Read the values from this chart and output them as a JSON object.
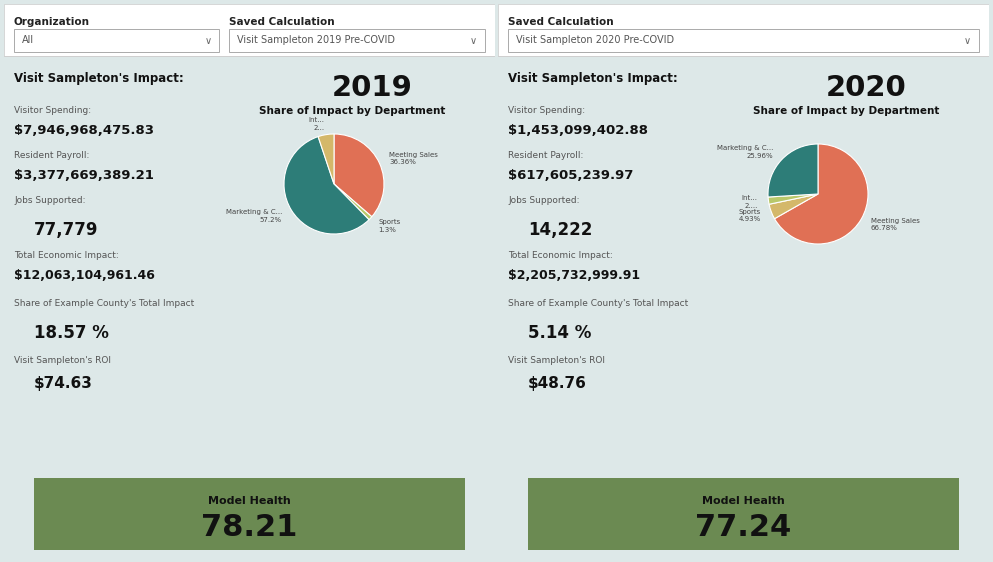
{
  "bg_color": "#dde8e8",
  "panel_bg": "#eaf2f2",
  "header_bg": "#ffffff",
  "divider_color": "#a8cece",
  "green_box_color": "#6b8a52",
  "left": {
    "org_label": "Organization",
    "org_value": "All",
    "calc_label": "Saved Calculation",
    "calc_value": "Visit Sampleton 2019 Pre-COVID",
    "year": "2019",
    "impact_title": "Visit Sampleton's Impact:",
    "visitor_label": "Visitor Spending:",
    "visitor_value": "$7,946,968,475.83",
    "payroll_label": "Resident Payroll:",
    "payroll_value": "$3,377,669,389.21",
    "jobs_label": "Jobs Supported:",
    "jobs_value": "77,779",
    "economic_label": "Total Economic Impact:",
    "economic_value": "$12,063,104,961.46",
    "share_label": "Share of Example County's Total Impact",
    "share_value": "18.57 %",
    "roi_label": "Visit Sampleton's ROI",
    "roi_value": "$74.63",
    "model_health_label": "Model Health",
    "model_health_value": "78.21",
    "pie_title": "Share of Impact by Department",
    "pie_slices": [
      36.36,
      1.3,
      57.2,
      5.14
    ],
    "pie_labels": [
      "Meeting Sales\n36.36%",
      "Sports\n1.3%",
      "Marketing & C...\n57.2%",
      "Int...\n2..."
    ],
    "pie_label_sides": [
      "right",
      "right",
      "left",
      "left"
    ],
    "pie_colors": [
      "#e07055",
      "#b8c86a",
      "#2d7d78",
      "#d4b86a"
    ],
    "pie_startangle": 90,
    "pie_counterclock": false
  },
  "right": {
    "calc_label": "Saved Calculation",
    "calc_value": "Visit Sampleton 2020 Pre-COVID",
    "year": "2020",
    "impact_title": "Visit Sampleton's Impact:",
    "visitor_label": "Visitor Spending:",
    "visitor_value": "$1,453,099,402.88",
    "payroll_label": "Resident Payroll:",
    "payroll_value": "$617,605,239.97",
    "jobs_label": "Jobs Supported:",
    "jobs_value": "14,222",
    "economic_label": "Total Economic Impact:",
    "economic_value": "$2,205,732,999.91",
    "share_label": "Share of Example County's Total Impact",
    "share_value": "5.14 %",
    "roi_label": "Visit Sampleton's ROI",
    "roi_value": "$48.76",
    "model_health_label": "Model Health",
    "model_health_value": "77.24",
    "pie_title": "Share of Impact by Department",
    "pie_slices": [
      66.78,
      4.93,
      2.33,
      25.96
    ],
    "pie_labels": [
      "Meeting Sales\n66.78%",
      "Sports\n4.93%",
      "Int...\n2....",
      "Marketing & C...\n25.96%"
    ],
    "pie_label_sides": [
      "right",
      "left",
      "left",
      "left"
    ],
    "pie_colors": [
      "#e07055",
      "#d4b86a",
      "#b8c86a",
      "#2d7d78"
    ],
    "pie_startangle": 90,
    "pie_counterclock": false
  }
}
